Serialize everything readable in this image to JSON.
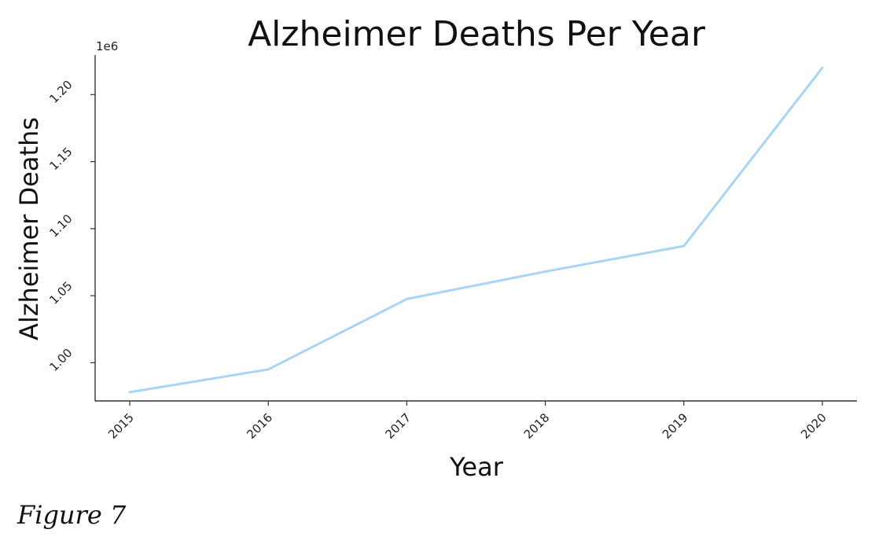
{
  "caption": "Figure 7",
  "chart_data": {
    "type": "line",
    "title": "Alzheimer Deaths Per Year",
    "xlabel": "Year",
    "ylabel": "Alzheimer Deaths",
    "y_offset_label": "1e6",
    "x": [
      "2015",
      "2016",
      "2017",
      "2018",
      "2019",
      "2020"
    ],
    "series": [
      {
        "values": [
          978000,
          995000,
          1047500,
          1068000,
          1087000,
          1220000
        ]
      }
    ],
    "xlim": [
      2014.75,
      2020.25
    ],
    "ylim": [
      0.9715,
      1.2295
    ],
    "y_tick_values": [
      1.0,
      1.05,
      1.1,
      1.15,
      1.2
    ],
    "y_tick_labels": [
      "1.00",
      "1.05",
      "1.10",
      "1.15",
      "1.20"
    ],
    "line_color": "#a8d4f5",
    "grid": false
  }
}
